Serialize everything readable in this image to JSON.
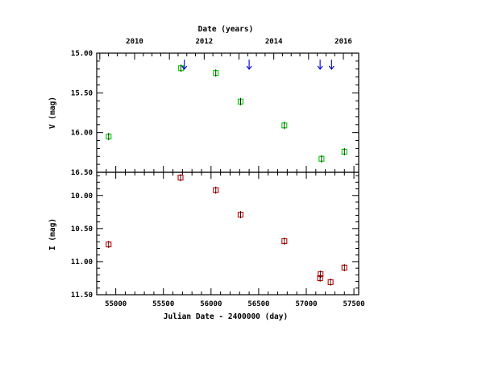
{
  "chart_data": [
    {
      "type": "scatter",
      "panel": "top",
      "xlabel": "Julian Date - 2400000 (day)",
      "top_xlabel": "Date (years)",
      "ylabel": "V (mag)",
      "xlim": [
        54800,
        57550
      ],
      "ylim": [
        16.5,
        15.0
      ],
      "y_inverted": true,
      "y_ticks": [
        "15.00",
        "15.50",
        "16.00",
        "16.50"
      ],
      "year_ticks": [
        "2010",
        "2012",
        "2014",
        "2016"
      ],
      "marker_color": "#00cc00",
      "arrow_color": "#0000cc",
      "series": [
        {
          "points": [
            {
              "x": 54925,
              "y": 16.05
            },
            {
              "x": 55685,
              "y": 15.19
            },
            {
              "x": 56050,
              "y": 15.25
            },
            {
              "x": 56310,
              "y": 15.61
            },
            {
              "x": 56770,
              "y": 15.91
            },
            {
              "x": 57160,
              "y": 16.33
            },
            {
              "x": 57400,
              "y": 16.24
            }
          ]
        }
      ],
      "arrows_x": [
        55720,
        56400,
        57145,
        57265
      ]
    },
    {
      "type": "scatter",
      "panel": "bottom",
      "xlabel": "Julian Date - 2400000 (day)",
      "ylabel": "I (mag)",
      "xlim": [
        54800,
        57550
      ],
      "ylim": [
        11.5,
        9.65
      ],
      "y_inverted": true,
      "x_ticks": [
        "55000",
        "55500",
        "56000",
        "56500",
        "57000",
        "57500"
      ],
      "y_ticks": [
        "10.00",
        "10.50",
        "11.00",
        "11.50"
      ],
      "marker_color": "#cc0000",
      "series": [
        {
          "points": [
            {
              "x": 54925,
              "y": 10.74
            },
            {
              "x": 55680,
              "y": 9.73
            },
            {
              "x": 56050,
              "y": 9.92
            },
            {
              "x": 56310,
              "y": 10.29
            },
            {
              "x": 56770,
              "y": 10.69
            },
            {
              "x": 57150,
              "y": 11.19
            },
            {
              "x": 57145,
              "y": 11.25
            },
            {
              "x": 57255,
              "y": 11.31
            },
            {
              "x": 57400,
              "y": 11.09
            }
          ]
        }
      ]
    }
  ]
}
